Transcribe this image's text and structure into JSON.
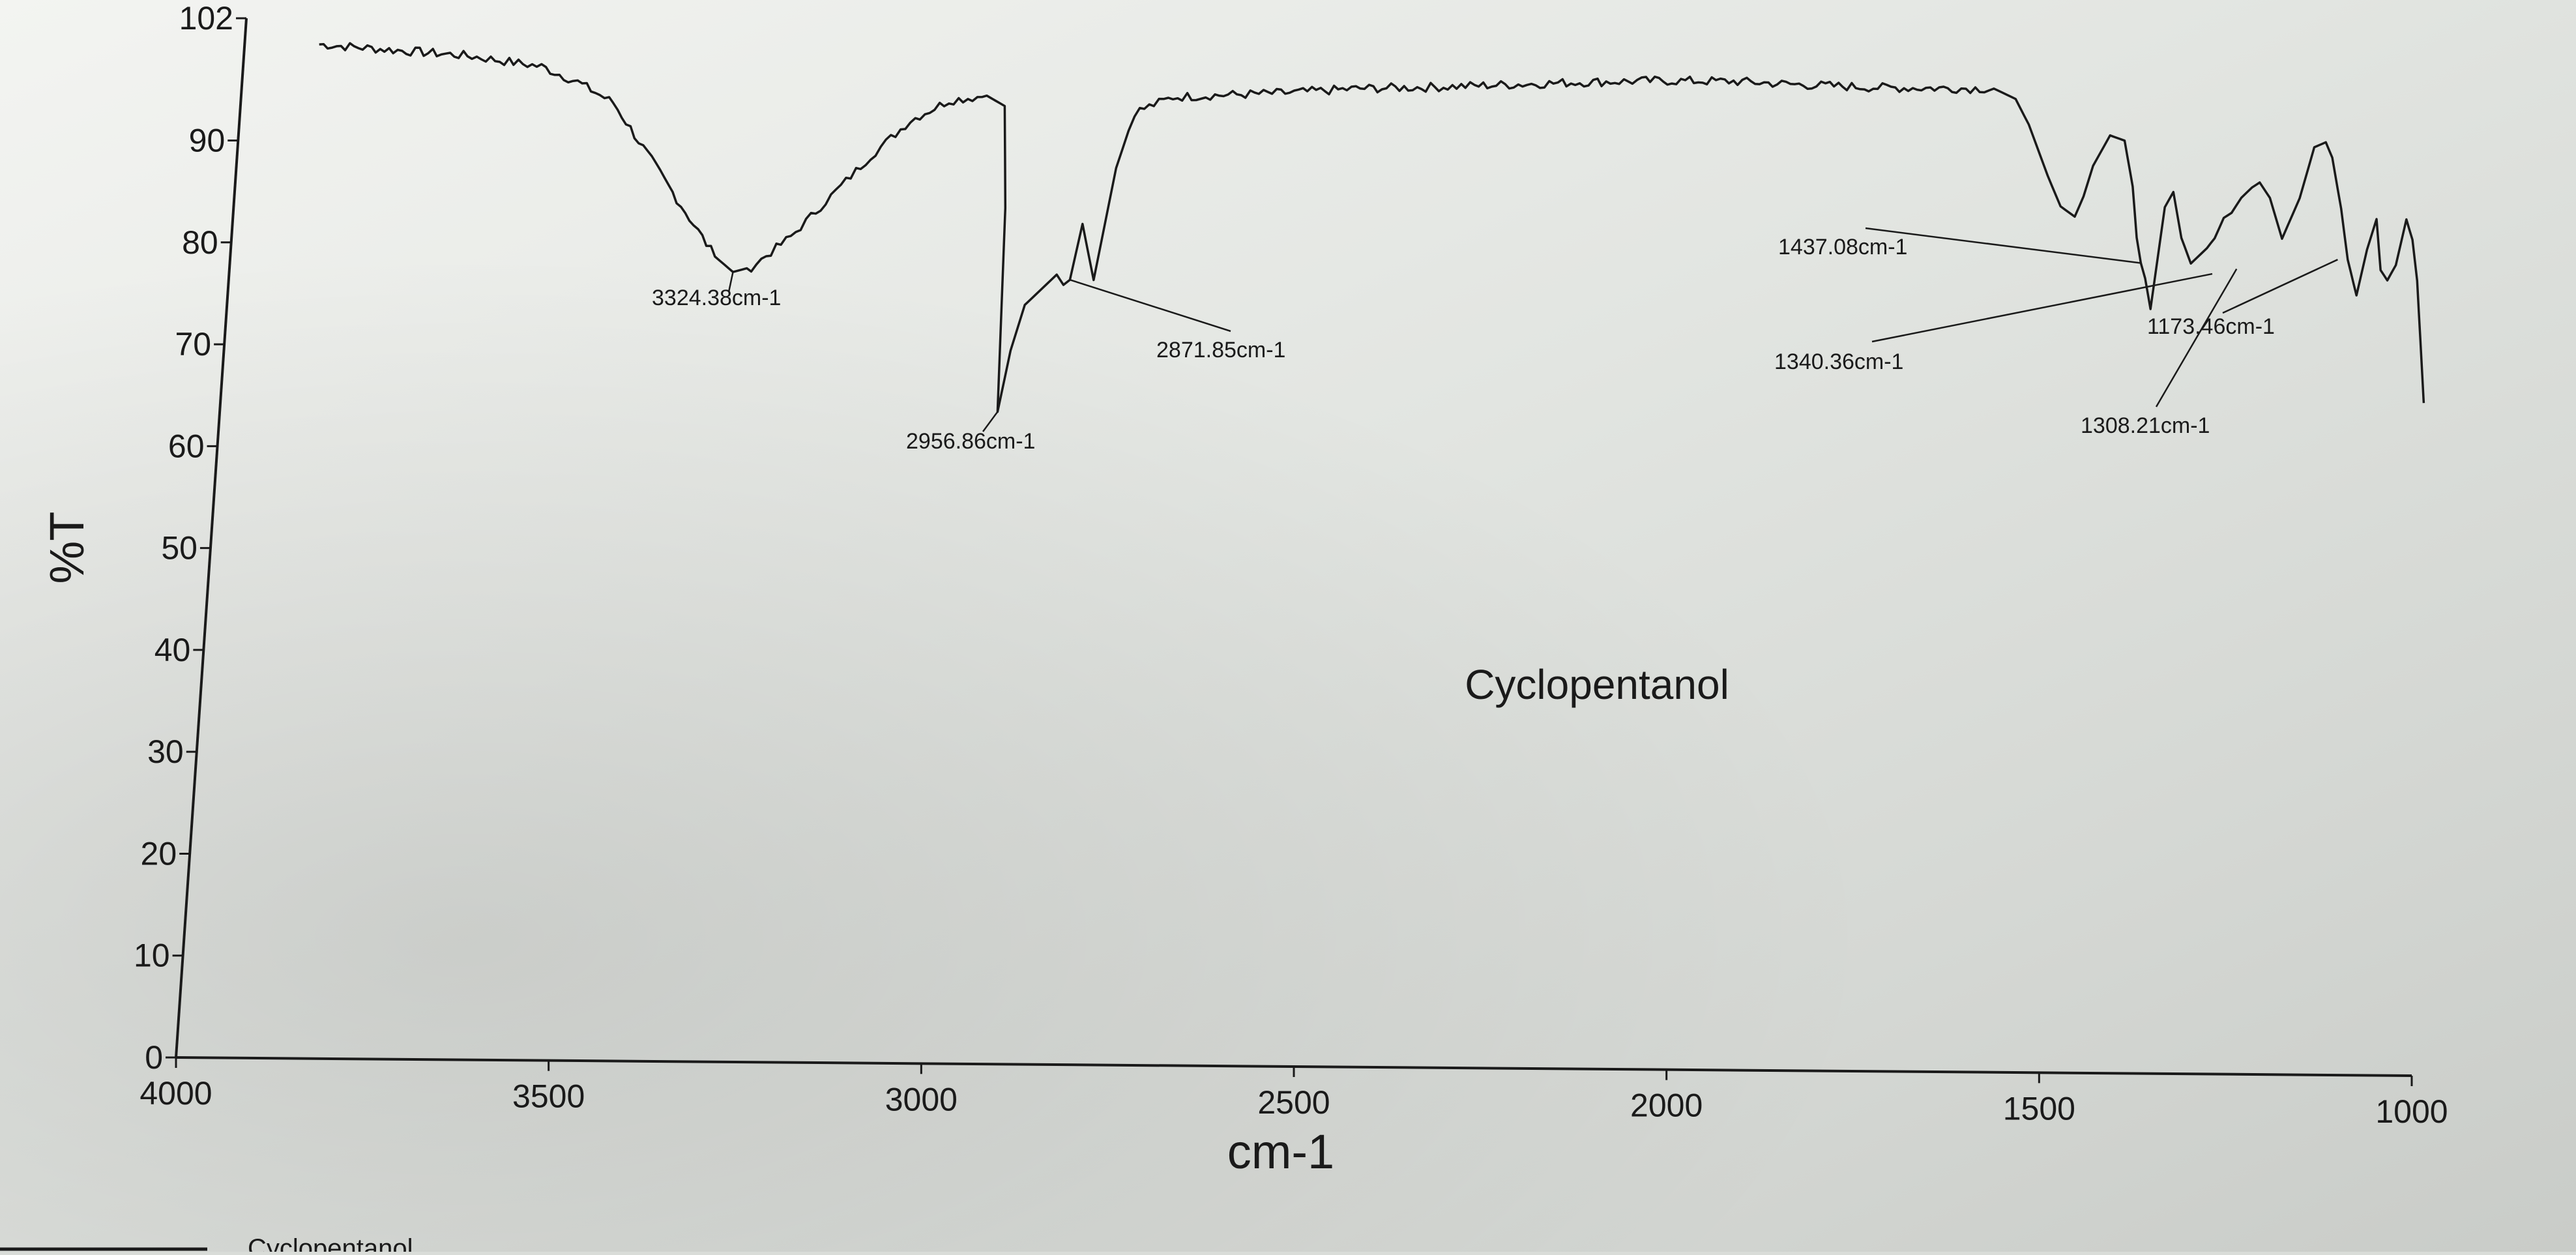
{
  "chart_data": {
    "type": "line",
    "title": "",
    "xlabel": "cm-1",
    "ylabel": "%T",
    "xlim": [
      4000,
      1000
    ],
    "ylim": [
      0,
      102
    ],
    "x_reversed": true,
    "grid": false,
    "x_ticks": [
      4000,
      3500,
      3000,
      2500,
      2000,
      1500,
      1000
    ],
    "y_ticks": [
      0,
      10,
      20,
      30,
      40,
      50,
      60,
      70,
      80,
      90,
      102
    ],
    "series": [
      {
        "name": "Cyclopentanol",
        "color": "#1a1a1a",
        "x": [
          3900,
          3800,
          3700,
          3650,
          3600,
          3550,
          3500,
          3450,
          3400,
          3350,
          3324.38,
          3300,
          3250,
          3200,
          3150,
          3100,
          3050,
          3000,
          2975,
          2965,
          2956.86,
          2945,
          2930,
          2910,
          2890,
          2880,
          2871.85,
          2860,
          2840,
          2820,
          2800,
          2750,
          2700,
          2600,
          2500,
          2400,
          2300,
          2200,
          2100,
          2000,
          1900,
          1800,
          1700,
          1650,
          1620,
          1600,
          1570,
          1550,
          1530,
          1520,
          1510,
          1490,
          1470,
          1455,
          1445,
          1437.08,
          1430,
          1420,
          1410,
          1400,
          1385,
          1370,
          1350,
          1340.36,
          1330,
          1320,
          1308.21,
          1295,
          1285,
          1270,
          1250,
          1230,
          1215,
          1200,
          1190,
          1173.46,
          1160,
          1145,
          1135,
          1125,
          1115,
          1105,
          1095,
          1085,
          1075,
          1065,
          1055,
          1045
        ],
        "y": [
          99.5,
          99,
          98.5,
          98,
          97.5,
          96,
          94,
          89,
          84,
          79,
          77.5,
          78,
          81,
          85,
          89,
          92.5,
          94.5,
          95,
          94,
          84,
          64,
          70,
          74.5,
          76,
          77.5,
          76.5,
          77,
          82.5,
          77,
          88,
          93.5,
          95,
          95.2,
          95.5,
          96,
          96.2,
          96.5,
          96.8,
          97,
          97,
          96.7,
          96.5,
          96.5,
          96.5,
          95.5,
          93,
          88,
          85,
          84,
          86,
          89,
          92,
          91.5,
          87,
          82,
          79.5,
          78,
          75,
          85,
          86.5,
          82,
          79.5,
          81,
          82,
          84,
          84.5,
          86,
          87,
          87.5,
          86,
          82,
          86,
          91,
          91.5,
          90,
          85,
          80,
          76.5,
          81,
          84,
          79,
          78,
          79.5,
          84,
          82,
          78,
          72,
          66
        ]
      }
    ],
    "annotations": [
      "3324.38cm-1",
      "2956.86cm-1",
      "2871.85cm-1",
      "1437.08cm-1",
      "1340.36cm-1",
      "1308.21cm-1",
      "1173.46cm-1"
    ],
    "center_label": "Cyclopentanol"
  },
  "footer": {
    "legend_label": "Cyclopentanol"
  }
}
